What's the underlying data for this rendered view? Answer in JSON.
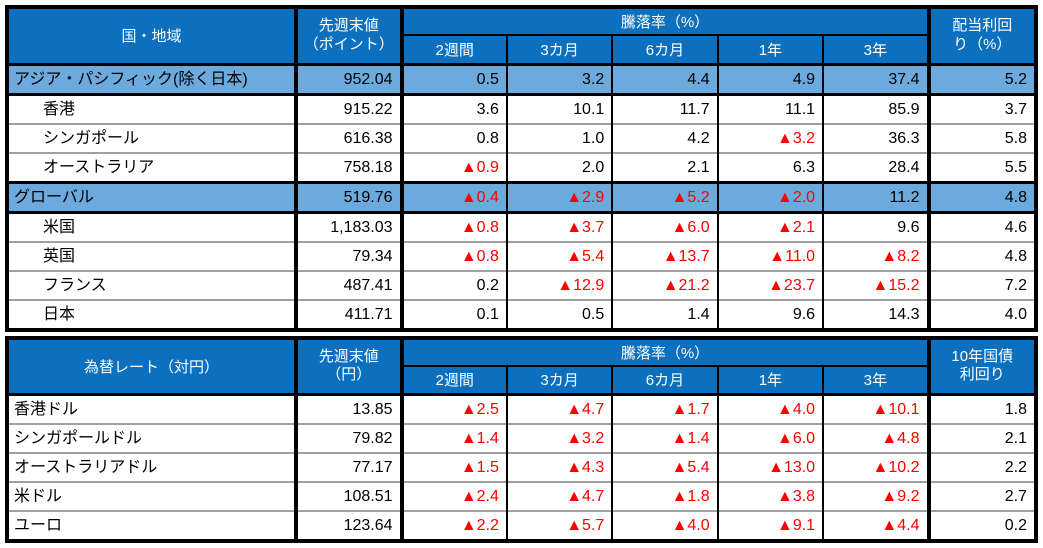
{
  "colors": {
    "header_blue": "#0C70BE",
    "row_highlight_blue": "#6CA9DC",
    "negative_red": "#FF0000",
    "grid_gray": "#A0A0A0",
    "border_black": "#000000"
  },
  "negative_marker": "▲",
  "table1": {
    "header": {
      "region": "国・地域",
      "value_line1": "先週末値",
      "value_line2": "（ポイント）",
      "change_group": "騰落率（%）",
      "periods": [
        "2週間",
        "3カ月",
        "6カ月",
        "1年",
        "3年"
      ],
      "last_line1": "配当利回",
      "last_line2": "り（%）"
    },
    "rows": [
      {
        "name": "アジア・パシフィック(除く日本)",
        "highlight": true,
        "indent": false,
        "value": "952.04",
        "changes": [
          "0.5",
          "3.2",
          "4.4",
          "4.9",
          "37.4"
        ],
        "last": "5.2"
      },
      {
        "name": "香港",
        "highlight": false,
        "indent": true,
        "value": "915.22",
        "changes": [
          "3.6",
          "10.1",
          "11.7",
          "11.1",
          "85.9"
        ],
        "last": "3.7"
      },
      {
        "name": "シンガポール",
        "highlight": false,
        "indent": true,
        "value": "616.38",
        "changes": [
          "0.8",
          "1.0",
          "4.2",
          "▲3.2",
          "36.3"
        ],
        "last": "5.8"
      },
      {
        "name": "オーストラリア",
        "highlight": false,
        "indent": true,
        "value": "758.18",
        "changes": [
          "▲0.9",
          "2.0",
          "2.1",
          "6.3",
          "28.4"
        ],
        "last": "5.5"
      },
      {
        "name": "グローバル",
        "highlight": true,
        "indent": false,
        "value": "519.76",
        "changes": [
          "▲0.4",
          "▲2.9",
          "▲5.2",
          "▲2.0",
          "11.2"
        ],
        "last": "4.8"
      },
      {
        "name": "米国",
        "highlight": false,
        "indent": true,
        "value": "1,183.03",
        "changes": [
          "▲0.8",
          "▲3.7",
          "▲6.0",
          "▲2.1",
          "9.6"
        ],
        "last": "4.6"
      },
      {
        "name": "英国",
        "highlight": false,
        "indent": true,
        "value": "79.34",
        "changes": [
          "▲0.8",
          "▲5.4",
          "▲13.7",
          "▲11.0",
          "▲8.2"
        ],
        "last": "4.8"
      },
      {
        "name": "フランス",
        "highlight": false,
        "indent": true,
        "value": "487.41",
        "changes": [
          "0.2",
          "▲12.9",
          "▲21.2",
          "▲23.7",
          "▲15.2"
        ],
        "last": "7.2"
      },
      {
        "name": "日本",
        "highlight": false,
        "indent": true,
        "value": "411.71",
        "changes": [
          "0.1",
          "0.5",
          "1.4",
          "9.6",
          "14.3"
        ],
        "last": "4.0"
      }
    ]
  },
  "table2": {
    "header": {
      "region": "為替レート（対円）",
      "value_line1": "先週末値",
      "value_line2": "（円）",
      "change_group": "騰落率（%）",
      "periods": [
        "2週間",
        "3カ月",
        "6カ月",
        "1年",
        "3年"
      ],
      "last_line1": "10年国債",
      "last_line2": "利回り"
    },
    "rows": [
      {
        "name": "香港ドル",
        "highlight": false,
        "indent": false,
        "value": "13.85",
        "changes": [
          "▲2.5",
          "▲4.7",
          "▲1.7",
          "▲4.0",
          "▲10.1"
        ],
        "last": "1.8"
      },
      {
        "name": "シンガポールドル",
        "highlight": false,
        "indent": false,
        "value": "79.82",
        "changes": [
          "▲1.4",
          "▲3.2",
          "▲1.4",
          "▲6.0",
          "▲4.8"
        ],
        "last": "2.1"
      },
      {
        "name": "オーストラリアドル",
        "highlight": false,
        "indent": false,
        "value": "77.17",
        "changes": [
          "▲1.5",
          "▲4.3",
          "▲5.4",
          "▲13.0",
          "▲10.2"
        ],
        "last": "2.2"
      },
      {
        "name": "米ドル",
        "highlight": false,
        "indent": false,
        "value": "108.51",
        "changes": [
          "▲2.4",
          "▲4.7",
          "▲1.8",
          "▲3.8",
          "▲9.2"
        ],
        "last": "2.7"
      },
      {
        "name": "ユーロ",
        "highlight": false,
        "indent": false,
        "value": "123.64",
        "changes": [
          "▲2.2",
          "▲5.7",
          "▲4.0",
          "▲9.1",
          "▲4.4"
        ],
        "last": "0.2"
      }
    ]
  }
}
